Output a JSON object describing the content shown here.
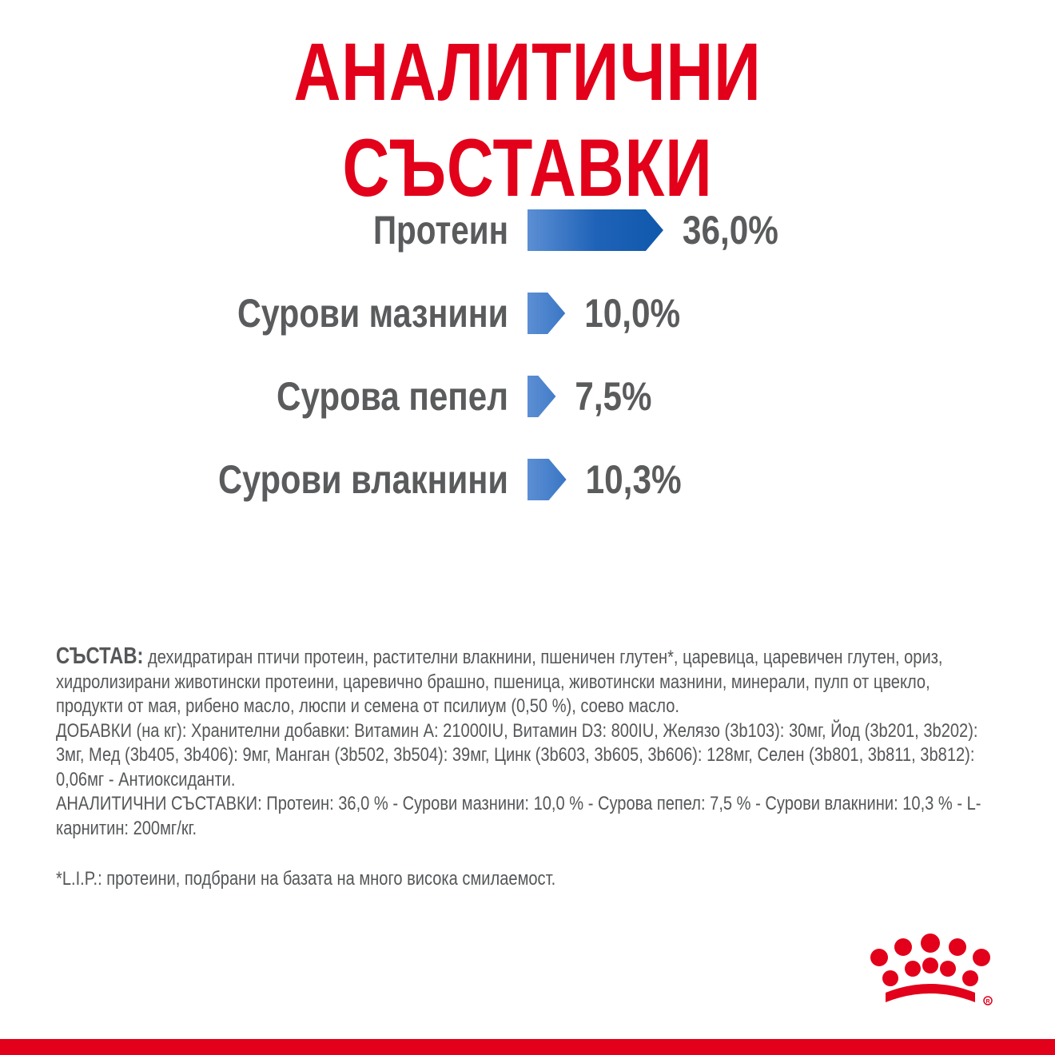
{
  "title": "АНАЛИТИЧНИ СЪСТАВКИ",
  "colors": {
    "accent_red": "#e2001a",
    "label_gray": "#5a5b5d",
    "bar_dark_blue": "#0b56a8",
    "bar_light_blue": "#5c8fd4",
    "text_gray": "#555759"
  },
  "chart_data": {
    "type": "bar",
    "orientation": "horizontal",
    "title": "",
    "unit": "%",
    "categories": [
      "Протеин",
      "Сурови мазнини",
      "Сурова пепел",
      "Сурови влакнини"
    ],
    "values": [
      36.0,
      10.0,
      7.5,
      10.3
    ],
    "value_labels": [
      "36,0%",
      "10,0%",
      "7,5%",
      "10,3%"
    ],
    "grid": false,
    "legend": "none"
  },
  "composition": {
    "lead": "СЪСТАВ:",
    "text": " дехидратиран птичи протеин, растителни влакнини, пшеничен глутен*, царевица, царевичен глутен, ориз, хидролизирани животински протеини, царевично брашно, пшеница, животински мазнини, минерали, пулп от цвекло, продукти от мая, рибено масло, люспи и семена от псилиум (0,50 %), соево масло.",
    "additives": "ДОБАВКИ (на кг): Хранителни добавки: Витамин А: 21000IU, Витамин D3: 800IU, Желязо (3b103): 30мг, Йод (3b201, 3b202): 3мг, Мед (3b405, 3b406): 9мг, Манган (3b502, 3b504): 39мг, Цинк (3b603, 3b605, 3b606): 128мг, Селен (3b801, 3b811, 3b812): 0,06мг - Антиоксиданти.",
    "analytical": "АНАЛИТИЧНИ СЪСТАВКИ: Протеин: 36,0 % - Сурови мазнини: 10,0 % - Сурова пепел: 7,5 % - Сурови влакнини: 10,3 % - L-карнитин: 200мг/кг."
  },
  "footnote": "*L.I.P.: протеини, подбрани на базата на много висока смилаемост.",
  "logo": {
    "icon": "royal-canin-crown-logo"
  }
}
